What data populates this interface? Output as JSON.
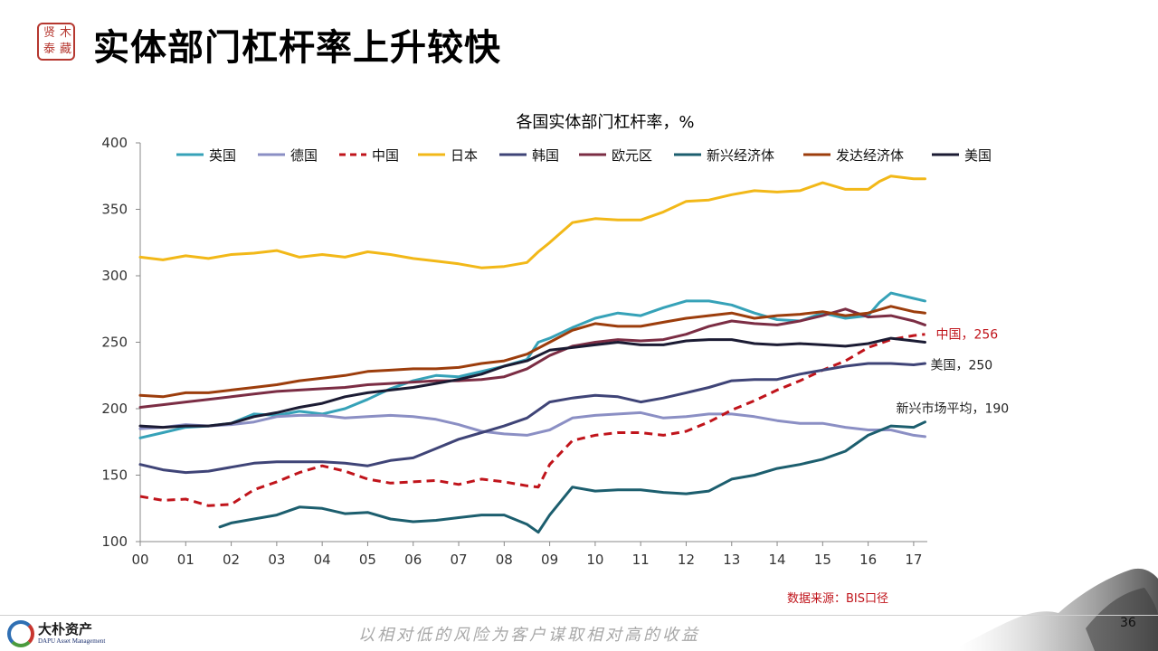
{
  "header": {
    "title": "实体部门杠杆率上升较快",
    "seal_chars": [
      "贤",
      "木",
      "泰",
      "藏"
    ]
  },
  "chart_data": {
    "type": "line",
    "title": "各国实体部门杠杆率，%",
    "ylim": [
      100,
      400
    ],
    "yticks": [
      100,
      150,
      200,
      250,
      300,
      350,
      400
    ],
    "xlim": [
      2000,
      2017.3
    ],
    "xticks": [
      {
        "v": 2000,
        "label": "00"
      },
      {
        "v": 2001,
        "label": "01"
      },
      {
        "v": 2002,
        "label": "02"
      },
      {
        "v": 2003,
        "label": "03"
      },
      {
        "v": 2004,
        "label": "04"
      },
      {
        "v": 2005,
        "label": "05"
      },
      {
        "v": 2006,
        "label": "06"
      },
      {
        "v": 2007,
        "label": "07"
      },
      {
        "v": 2008,
        "label": "08"
      },
      {
        "v": 2009,
        "label": "09"
      },
      {
        "v": 2010,
        "label": "10"
      },
      {
        "v": 2011,
        "label": "11"
      },
      {
        "v": 2012,
        "label": "12"
      },
      {
        "v": 2013,
        "label": "13"
      },
      {
        "v": 2014,
        "label": "14"
      },
      {
        "v": 2015,
        "label": "15"
      },
      {
        "v": 2016,
        "label": "16"
      },
      {
        "v": 2017,
        "label": "17"
      }
    ],
    "grid": false,
    "legend_position": "top",
    "series": [
      {
        "name": "英国",
        "color": "#36a2b8",
        "dash": false,
        "x": [
          2000,
          2000.5,
          2001,
          2001.5,
          2002,
          2002.5,
          2003,
          2003.5,
          2004,
          2004.5,
          2005,
          2005.5,
          2006,
          2006.5,
          2007,
          2007.5,
          2008,
          2008.5,
          2008.75,
          2009,
          2009.5,
          2010,
          2010.5,
          2011,
          2011.5,
          2012,
          2012.5,
          2013,
          2013.5,
          2014,
          2014.5,
          2015,
          2015.5,
          2016,
          2016.25,
          2016.5,
          2017,
          2017.25
        ],
        "y": [
          178,
          182,
          186,
          187,
          189,
          196,
          195,
          198,
          196,
          200,
          207,
          215,
          221,
          225,
          224,
          228,
          232,
          237,
          250,
          253,
          261,
          268,
          272,
          270,
          276,
          281,
          281,
          278,
          272,
          267,
          266,
          272,
          268,
          270,
          280,
          287,
          283,
          281
        ]
      },
      {
        "name": "德国",
        "color": "#8b8fc4",
        "dash": false,
        "x": [
          2000,
          2000.5,
          2001,
          2001.5,
          2002,
          2002.5,
          2003,
          2003.5,
          2004,
          2004.5,
          2005,
          2005.5,
          2006,
          2006.5,
          2007,
          2007.5,
          2008,
          2008.5,
          2009,
          2009.5,
          2010,
          2010.5,
          2011,
          2011.5,
          2012,
          2012.5,
          2013,
          2013.5,
          2014,
          2014.5,
          2015,
          2015.5,
          2016,
          2016.5,
          2017,
          2017.25
        ],
        "y": [
          185,
          186,
          188,
          187,
          188,
          190,
          194,
          195,
          195,
          193,
          194,
          195,
          194,
          192,
          188,
          183,
          181,
          180,
          184,
          193,
          195,
          196,
          197,
          193,
          194,
          196,
          196,
          194,
          191,
          189,
          189,
          186,
          184,
          184,
          180,
          179
        ]
      },
      {
        "name": "中国",
        "color": "#c0141b",
        "dash": true,
        "x": [
          2000,
          2000.5,
          2001,
          2001.5,
          2002,
          2002.5,
          2003,
          2003.5,
          2004,
          2004.5,
          2005,
          2005.5,
          2006,
          2006.5,
          2007,
          2007.5,
          2008,
          2008.5,
          2008.75,
          2009,
          2009.5,
          2010,
          2010.5,
          2011,
          2011.5,
          2012,
          2012.5,
          2013,
          2013.5,
          2014,
          2014.5,
          2015,
          2015.5,
          2016,
          2016.5,
          2017,
          2017.25
        ],
        "y": [
          134,
          131,
          132,
          127,
          128,
          139,
          145,
          152,
          157,
          153,
          147,
          144,
          145,
          146,
          143,
          147,
          145,
          142,
          141,
          158,
          176,
          180,
          182,
          182,
          180,
          183,
          190,
          199,
          206,
          214,
          221,
          229,
          236,
          246,
          252,
          255,
          256
        ]
      },
      {
        "name": "日本",
        "color": "#f2b818",
        "dash": false,
        "x": [
          2000,
          2000.5,
          2001,
          2001.5,
          2002,
          2002.5,
          2003,
          2003.5,
          2004,
          2004.5,
          2005,
          2005.5,
          2006,
          2006.5,
          2007,
          2007.5,
          2008,
          2008.5,
          2008.75,
          2009,
          2009.5,
          2010,
          2010.5,
          2011,
          2011.5,
          2012,
          2012.5,
          2013,
          2013.5,
          2014,
          2014.5,
          2015,
          2015.5,
          2016,
          2016.25,
          2016.5,
          2017,
          2017.25
        ],
        "y": [
          314,
          312,
          315,
          313,
          316,
          317,
          319,
          314,
          316,
          314,
          318,
          316,
          313,
          311,
          309,
          306,
          307,
          310,
          318,
          325,
          340,
          343,
          342,
          342,
          348,
          356,
          357,
          361,
          364,
          363,
          364,
          370,
          365,
          365,
          371,
          375,
          373,
          373
        ]
      },
      {
        "name": "韩国",
        "color": "#3f4477",
        "dash": false,
        "x": [
          2000,
          2000.5,
          2001,
          2001.5,
          2002,
          2002.5,
          2003,
          2003.5,
          2004,
          2004.5,
          2005,
          2005.5,
          2006,
          2006.5,
          2007,
          2007.5,
          2008,
          2008.5,
          2009,
          2009.5,
          2010,
          2010.5,
          2011,
          2011.5,
          2012,
          2012.5,
          2013,
          2013.5,
          2014,
          2014.5,
          2015,
          2015.5,
          2016,
          2016.5,
          2017,
          2017.25
        ],
        "y": [
          158,
          154,
          152,
          153,
          156,
          159,
          160,
          160,
          160,
          159,
          157,
          161,
          163,
          170,
          177,
          182,
          187,
          193,
          205,
          208,
          210,
          209,
          205,
          208,
          212,
          216,
          221,
          222,
          222,
          226,
          229,
          232,
          234,
          234,
          233,
          234
        ]
      },
      {
        "name": "欧元区",
        "color": "#7b2d44",
        "dash": false,
        "x": [
          2000,
          2000.5,
          2001,
          2001.5,
          2002,
          2002.5,
          2003,
          2003.5,
          2004,
          2004.5,
          2005,
          2005.5,
          2006,
          2006.5,
          2007,
          2007.5,
          2008,
          2008.5,
          2009,
          2009.5,
          2010,
          2010.5,
          2011,
          2011.5,
          2012,
          2012.5,
          2013,
          2013.5,
          2014,
          2014.5,
          2015,
          2015.5,
          2016,
          2016.5,
          2017,
          2017.25
        ],
        "y": [
          201,
          203,
          205,
          207,
          209,
          211,
          213,
          214,
          215,
          216,
          218,
          219,
          220,
          221,
          221,
          222,
          224,
          230,
          240,
          247,
          250,
          252,
          251,
          252,
          256,
          262,
          266,
          264,
          263,
          266,
          270,
          275,
          269,
          270,
          266,
          263
        ]
      },
      {
        "name": "新兴经济体",
        "color": "#1c5e6e",
        "dash": false,
        "x": [
          2001.75,
          2002,
          2002.5,
          2003,
          2003.5,
          2004,
          2004.5,
          2005,
          2005.5,
          2006,
          2006.5,
          2007,
          2007.5,
          2008,
          2008.5,
          2008.75,
          2009,
          2009.5,
          2010,
          2010.5,
          2011,
          2011.5,
          2012,
          2012.5,
          2013,
          2013.5,
          2014,
          2014.5,
          2015,
          2015.5,
          2016,
          2016.5,
          2017,
          2017.25
        ],
        "y": [
          111,
          114,
          117,
          120,
          126,
          125,
          121,
          122,
          117,
          115,
          116,
          118,
          120,
          120,
          113,
          107,
          120,
          141,
          138,
          139,
          139,
          137,
          136,
          138,
          147,
          150,
          155,
          158,
          162,
          168,
          180,
          187,
          186,
          190
        ]
      },
      {
        "name": "发达经济体",
        "color": "#9c3d0c",
        "dash": false,
        "x": [
          2000,
          2000.5,
          2001,
          2001.5,
          2002,
          2002.5,
          2003,
          2003.5,
          2004,
          2004.5,
          2005,
          2005.5,
          2006,
          2006.5,
          2007,
          2007.5,
          2008,
          2008.5,
          2009,
          2009.5,
          2010,
          2010.5,
          2011,
          2011.5,
          2012,
          2012.5,
          2013,
          2013.5,
          2014,
          2014.5,
          2015,
          2015.5,
          2016,
          2016.5,
          2017,
          2017.25
        ],
        "y": [
          210,
          209,
          212,
          212,
          214,
          216,
          218,
          221,
          223,
          225,
          228,
          229,
          230,
          230,
          231,
          234,
          236,
          241,
          250,
          259,
          264,
          262,
          262,
          265,
          268,
          270,
          272,
          268,
          270,
          271,
          273,
          270,
          272,
          277,
          273,
          272
        ]
      },
      {
        "name": "美国",
        "color": "#1b1b33",
        "dash": false,
        "x": [
          2000,
          2000.5,
          2001,
          2001.5,
          2002,
          2002.5,
          2003,
          2003.5,
          2004,
          2004.5,
          2005,
          2005.5,
          2006,
          2006.5,
          2007,
          2007.5,
          2008,
          2008.5,
          2009,
          2009.5,
          2010,
          2010.5,
          2011,
          2011.5,
          2012,
          2012.5,
          2013,
          2013.5,
          2014,
          2014.5,
          2015,
          2015.5,
          2016,
          2016.5,
          2017,
          2017.25
        ],
        "y": [
          187,
          186,
          187,
          187,
          189,
          194,
          197,
          201,
          204,
          209,
          212,
          214,
          216,
          219,
          222,
          226,
          232,
          236,
          244,
          246,
          248,
          250,
          248,
          248,
          251,
          252,
          252,
          249,
          248,
          249,
          248,
          247,
          249,
          253,
          251,
          250
        ]
      }
    ],
    "annotations": [
      {
        "text": "中国，256",
        "color": "#c0141b",
        "x": 2017.25,
        "y": 256,
        "anchor": "right"
      },
      {
        "text": "美国，250",
        "color": "#222222",
        "x": 2017.25,
        "y": 250,
        "anchor": "right-below"
      },
      {
        "text": "新兴市场平均，190",
        "color": "#222222",
        "x": 2017.25,
        "y": 190,
        "anchor": "above"
      }
    ],
    "source": "数据来源：BIS口径",
    "source_color": "#c0141b"
  },
  "footer": {
    "company_cn": "大朴资产",
    "company_en": "DAPU Asset Management",
    "slogan": "以相对低的风险为客户谋取相对高的收益",
    "page_number": "36"
  }
}
